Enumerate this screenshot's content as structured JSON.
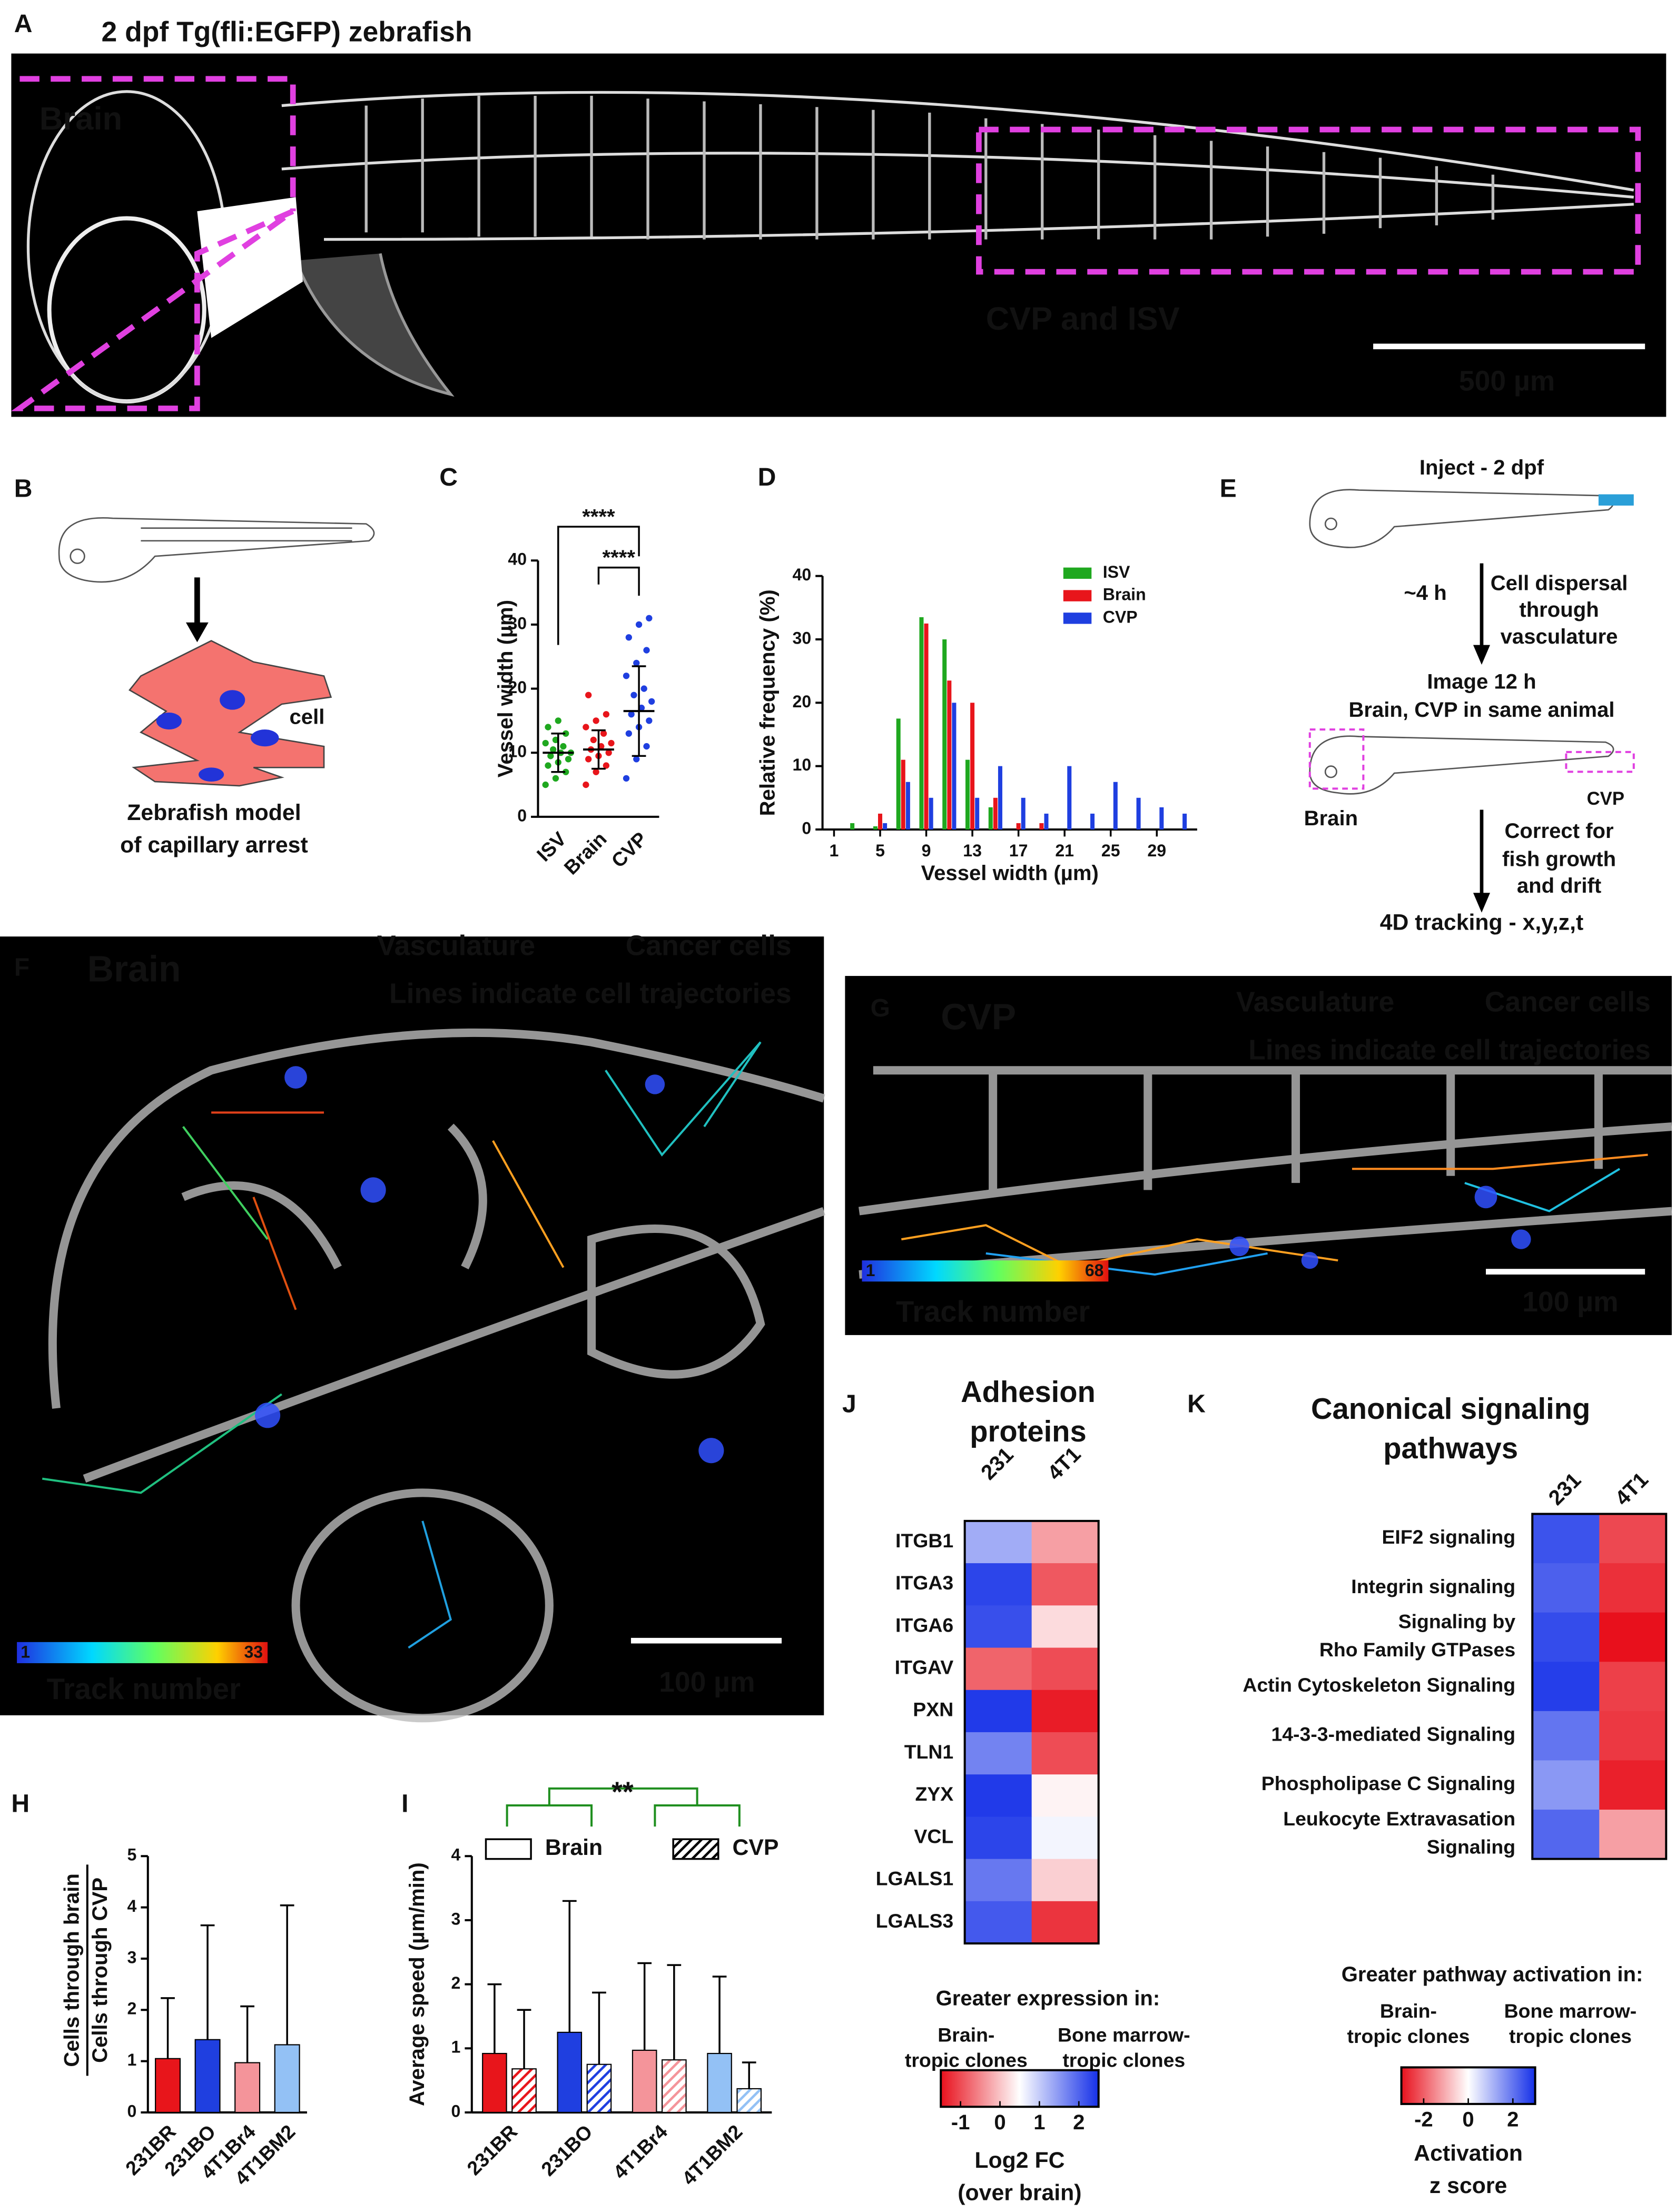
{
  "panels": {
    "A": {
      "letter": "A",
      "title": "2 dpf Tg(fli:EGFP) zebrafish",
      "labels": [
        "Brain",
        "CVP and ISV"
      ],
      "scale_bar": "500 µm"
    },
    "B": {
      "letter": "B",
      "label": "cell",
      "caption": [
        "Zebrafish model",
        "of capillary arrest"
      ]
    },
    "E": {
      "letter": "E",
      "inject": "Inject - 2 dpf",
      "time": "~4 h",
      "dispersal": [
        "Cell dispersal",
        "through",
        "vasculature"
      ],
      "image": [
        "Image 12 h",
        "Brain, CVP in same animal"
      ],
      "brain": "Brain",
      "cvp": "CVP",
      "correct": [
        "Correct for",
        "fish growth",
        "and drift"
      ],
      "tracking": "4D tracking - x,y,z,t"
    },
    "F": {
      "letter": "F",
      "region": "Brain",
      "vasculature": "Vasculature",
      "cancer": "Cancer cells",
      "lines": "Lines indicate cell trajectories",
      "track_min": "1",
      "track_max": "33",
      "track_label": "Track number",
      "scale_bar": "100 µm"
    },
    "G": {
      "letter": "G",
      "region": "CVP",
      "vasculature": "Vasculature",
      "cancer": "Cancer cells",
      "lines": "Lines indicate cell trajectories",
      "track_min": "1",
      "track_max": "68",
      "track_label": "Track number",
      "scale_bar": "100 µm"
    }
  },
  "chart_data": [
    {
      "type": "dot",
      "letter": "C",
      "ylabel": "Vessel width (µm)",
      "categories": [
        "ISV",
        "Brain",
        "CVP"
      ],
      "colors": [
        "#1fa81f",
        "#e8151b",
        "#1f3fe0"
      ],
      "values": [
        10,
        10.5,
        16.5
      ],
      "errors": [
        3,
        3,
        7
      ],
      "points": [
        [
          5,
          6,
          7,
          8,
          8.5,
          9,
          9.5,
          10,
          10,
          10.5,
          11,
          11.5,
          12,
          13,
          14,
          15
        ],
        [
          5,
          7,
          8,
          9,
          9.5,
          10,
          10.5,
          11,
          11.5,
          12,
          13,
          14,
          15,
          16,
          19
        ],
        [
          6,
          9,
          11,
          13,
          14,
          15,
          16,
          17,
          18,
          19,
          20,
          22,
          24,
          26,
          28,
          30,
          31
        ]
      ],
      "annotations": [
        "****",
        "****"
      ],
      "ylim": [
        0,
        40
      ],
      "yticks": [
        0,
        10,
        20,
        30,
        40
      ]
    },
    {
      "type": "histogram",
      "letter": "D",
      "ylabel": "Relative frequency (%)",
      "xlabel": "Vessel width (µm)",
      "x": [
        3,
        5,
        7,
        9,
        11,
        13,
        15,
        17,
        19,
        21,
        23,
        25,
        27,
        29,
        31
      ],
      "series": [
        {
          "name": "ISV",
          "color": "#1fa81f",
          "values": [
            1,
            0.5,
            17.5,
            33.5,
            30,
            11,
            3.5,
            0,
            0,
            0,
            0,
            0,
            0,
            0,
            0
          ]
        },
        {
          "name": "Brain",
          "color": "#e8151b",
          "values": [
            0,
            2.5,
            11,
            32.5,
            23.5,
            20,
            5,
            1,
            1,
            0,
            0,
            0,
            0,
            0,
            0
          ]
        },
        {
          "name": "CVP",
          "color": "#1f3fe0",
          "values": [
            0,
            1,
            7.5,
            5,
            20,
            5,
            10,
            5,
            2.5,
            10,
            2.5,
            7.5,
            5,
            3.5,
            2.5
          ]
        }
      ],
      "legend": "top-right",
      "xlim": [
        0,
        32.5
      ],
      "xticks": [
        1,
        5,
        9,
        13,
        17,
        21,
        25,
        29
      ],
      "ylim": [
        0,
        40
      ],
      "yticks": [
        0,
        10,
        20,
        30,
        40
      ]
    },
    {
      "type": "bar",
      "letter": "H",
      "ylabel": [
        "Cells through brain",
        "Cells through CVP"
      ],
      "categories": [
        "231BR",
        "231BO",
        "4T1Br4",
        "4T1BM2"
      ],
      "colors": [
        "#e8151b",
        "#1f3fe0",
        "#f4949a",
        "#93c1f5"
      ],
      "values": [
        1.05,
        1.42,
        0.97,
        1.32
      ],
      "errors": [
        1.18,
        2.23,
        1.1,
        2.72
      ],
      "ylim": [
        0,
        5
      ],
      "yticks": [
        0,
        1,
        2,
        3,
        4,
        5
      ]
    },
    {
      "type": "grouped_bar",
      "letter": "I",
      "ylabel": "Average speed (µm/min)",
      "categories": [
        "231BR",
        "231BO",
        "4T1Br4",
        "4T1BM2"
      ],
      "colors": [
        "#e8151b",
        "#1f3fe0",
        "#f4949a",
        "#93c1f5"
      ],
      "series": [
        {
          "name": "Brain",
          "hatched": false,
          "values": [
            0.92,
            1.25,
            0.97,
            0.92
          ],
          "errors": [
            1.08,
            2.05,
            1.36,
            1.2
          ]
        },
        {
          "name": "CVP",
          "hatched": true,
          "values": [
            0.68,
            0.75,
            0.82,
            0.37
          ],
          "errors": [
            0.92,
            1.12,
            1.48,
            0.41
          ]
        }
      ],
      "annotation": "**",
      "annotation_color": "#1f8f1f",
      "ylim": [
        0,
        4
      ],
      "yticks": [
        0,
        1,
        2,
        3,
        4
      ]
    },
    {
      "type": "heatmap",
      "letter": "J",
      "title": [
        "Adhesion",
        "proteins"
      ],
      "columns": [
        "231",
        "4T1"
      ],
      "rows": [
        "ITGB1",
        "ITGA3",
        "ITGA6",
        "ITGAV",
        "PXN",
        "TLN1",
        "ZYX",
        "VCL",
        "LGALS1",
        "LGALS3"
      ],
      "values": [
        [
          1.3,
          -0.3
        ],
        [
          2.3,
          -0.9
        ],
        [
          2.2,
          0.2
        ],
        [
          -0.8,
          -1.0
        ],
        [
          2.4,
          -1.4
        ],
        [
          1.7,
          -1.0
        ],
        [
          2.4,
          0.4
        ],
        [
          2.3,
          0.6
        ],
        [
          1.8,
          0.1
        ],
        [
          2.1,
          -1.2
        ]
      ],
      "legend_title": "Greater expression in:",
      "low_label": [
        "Brain-",
        "tropic clones"
      ],
      "high_label": [
        "Bone marrow-",
        "tropic clones"
      ],
      "zlim": [
        -1.5,
        2.5
      ],
      "cbar_ticks": [
        -1,
        0,
        1,
        2
      ],
      "cbar_label": [
        "Log2 FC",
        "(over brain)"
      ]
    },
    {
      "type": "heatmap",
      "letter": "K",
      "title": [
        "Canonical signaling",
        "pathways"
      ],
      "columns": [
        "231",
        "4T1"
      ],
      "rows": [
        [
          "EIF2 signaling"
        ],
        [
          "Integrin signaling"
        ],
        [
          "Signaling by",
          "Rho Family GTPases"
        ],
        [
          "Actin Cytoskeleton Signaling"
        ],
        [
          "14-3-3-mediated Signaling"
        ],
        [
          "Phospholipase C Signaling"
        ],
        [
          "Leukocyte Extravasation",
          "Signaling"
        ]
      ],
      "values": [
        [
          2.5,
          -2.3
        ],
        [
          2.3,
          -2.6
        ],
        [
          2.6,
          -3
        ],
        [
          2.8,
          -2.4
        ],
        [
          2.0,
          -2.5
        ],
        [
          1.5,
          -2.8
        ],
        [
          2.2,
          -1.2
        ]
      ],
      "legend_title": "Greater pathway activation in:",
      "low_label": [
        "Brain-",
        "tropic clones"
      ],
      "high_label": [
        "Bone marrow-",
        "tropic clones"
      ],
      "zlim": [
        -3,
        3
      ],
      "cbar_ticks": [
        -2,
        0,
        2
      ],
      "cbar_label": [
        "Activation",
        "z score"
      ]
    }
  ]
}
